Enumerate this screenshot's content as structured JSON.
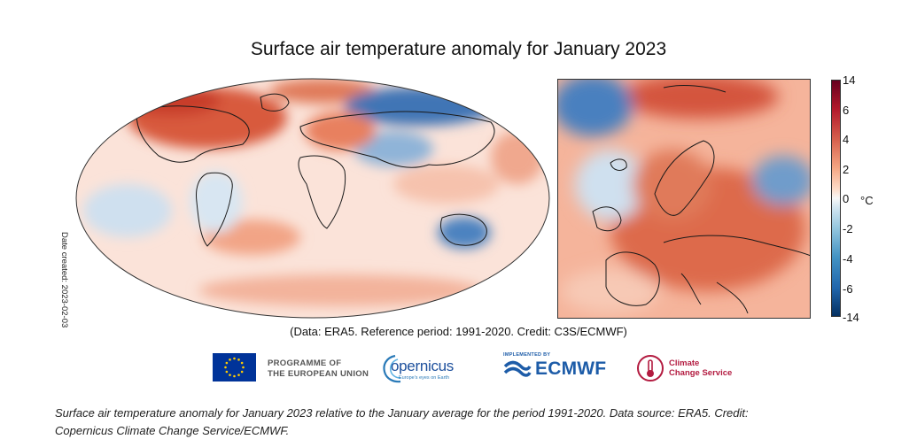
{
  "chart_data": [
    {
      "type": "heatmap",
      "title": "Surface air temperature anomaly for January 2023",
      "region": "global",
      "projection": "Robinson",
      "variable": "Surface air temperature anomaly",
      "units": "°C",
      "notable_anomalies": [
        {
          "area": "Eastern Canada / Labrador Sea",
          "sign": "positive",
          "strength": "strong"
        },
        {
          "area": "Siberia / Northern Asia",
          "sign": "negative",
          "strength": "strong"
        },
        {
          "area": "Central Asia / Mongolia",
          "sign": "negative",
          "strength": "moderate"
        },
        {
          "area": "Western Australia",
          "sign": "negative",
          "strength": "moderate"
        },
        {
          "area": "Europe",
          "sign": "positive",
          "strength": "strong"
        },
        {
          "area": "Arctic Ocean (Siberian side)",
          "sign": "positive",
          "strength": "strong"
        }
      ]
    },
    {
      "type": "heatmap",
      "region": "europe",
      "variable": "Surface air temperature anomaly",
      "units": "°C",
      "notable_anomalies": [
        {
          "area": "Eastern / Central Europe",
          "sign": "positive",
          "strength": "strong"
        },
        {
          "area": "Scandinavia",
          "sign": "positive",
          "strength": "moderate"
        },
        {
          "area": "Greenland Sea / Iceland",
          "sign": "negative",
          "strength": "moderate"
        },
        {
          "area": "Western Russia (east edge)",
          "sign": "negative",
          "strength": "moderate"
        },
        {
          "area": "Svalbard / Barents Sea",
          "sign": "positive",
          "strength": "strong"
        }
      ]
    }
  ],
  "colorbar": {
    "ticks": [
      "14",
      "6",
      "4",
      "2",
      "0",
      "-2",
      "-4",
      "-6",
      "-14"
    ],
    "tick_values": [
      14,
      6,
      4,
      2,
      0,
      -2,
      -4,
      -6,
      -14
    ],
    "unit_label": "°C",
    "colors": [
      "#053061",
      "#2166ac",
      "#4393c3",
      "#92c5de",
      "#d1e5f0",
      "#f7f7f7",
      "#fddbc7",
      "#f4a582",
      "#d6604d",
      "#b2182b",
      "#67001f"
    ]
  },
  "title": "Surface air temperature anomaly for January 2023",
  "date_created": "Date created: 2023-02-03",
  "source_line": "(Data: ERA5.  Reference period: 1991-2020.  Credit: C3S/ECMWF)",
  "logos": {
    "eu_line1": "PROGRAMME OF",
    "eu_line2": "THE EUROPEAN UNION",
    "copernicus_word": "opernicus",
    "copernicus_tagline": "Europe's eyes on Earth",
    "ecmwf_implemented": "IMPLEMENTED BY",
    "ecmwf_word": "ECMWF",
    "c3s_line1": "Climate",
    "c3s_line2": "Change Service"
  },
  "caption_line1": "Surface air temperature anomaly for January 2023 relative to the January average for the period 1991-2020. Data source: ERA5. Credit:",
  "caption_line2": "Copernicus Climate Change Service/ECMWF."
}
